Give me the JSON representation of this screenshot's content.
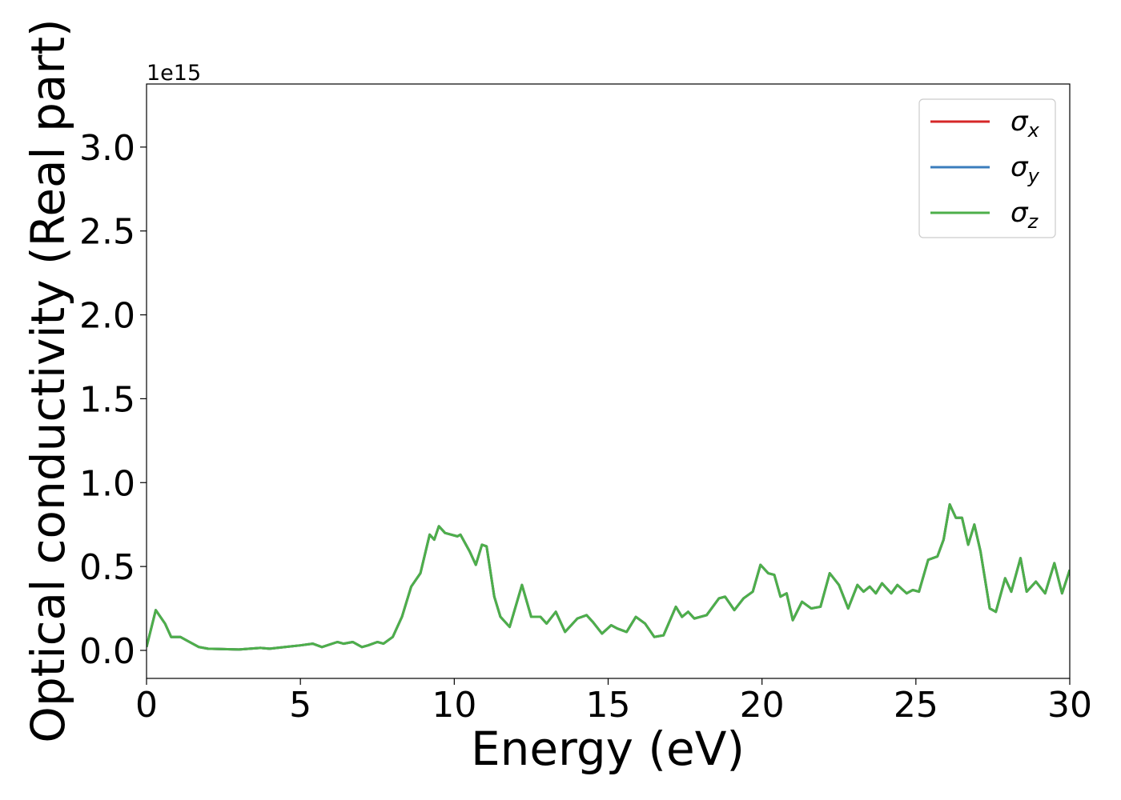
{
  "chart_data": {
    "type": "line",
    "xlabel": "Energy (eV)",
    "ylabel": "Optical conductivity (Real part)",
    "y_offset_text": "1e15",
    "xlim": [
      0,
      30
    ],
    "xticks": [
      0,
      5,
      10,
      15,
      20,
      25,
      30
    ],
    "ylim": [
      -0.167,
      3.376
    ],
    "yticks": [
      {
        "value": 0,
        "label": "0.0"
      },
      {
        "value": 0.5,
        "label": "0.5"
      },
      {
        "value": 1,
        "label": "1.0"
      },
      {
        "value": 1.5,
        "label": "1.5"
      },
      {
        "value": 2,
        "label": "2.0"
      },
      {
        "value": 2.5,
        "label": "2.5"
      },
      {
        "value": 3,
        "label": "3.0"
      }
    ],
    "legend": "upper right",
    "grid": false,
    "x": [
      0,
      0.3,
      0.6,
      0.8,
      1.1,
      1.3,
      1.7,
      2.0,
      3.0,
      3.7,
      4.0,
      4.5,
      5.0,
      5.4,
      5.7,
      6.2,
      6.4,
      6.7,
      7.0,
      7.2,
      7.5,
      7.7,
      8.0,
      8.3,
      8.6,
      8.9,
      9.2,
      9.35,
      9.5,
      9.7,
      9.9,
      10.1,
      10.2,
      10.5,
      10.7,
      10.9,
      11.05,
      11.3,
      11.5,
      11.8,
      12.2,
      12.5,
      12.8,
      13.0,
      13.3,
      13.6,
      14.0,
      14.3,
      14.5,
      14.8,
      15.1,
      15.3,
      15.6,
      15.9,
      16.2,
      16.5,
      16.8,
      17.2,
      17.4,
      17.6,
      17.8,
      18.2,
      18.6,
      18.8,
      19.1,
      19.4,
      19.7,
      19.95,
      20.2,
      20.4,
      20.6,
      20.8,
      21.0,
      21.3,
      21.6,
      21.9,
      22.2,
      22.5,
      22.8,
      23.1,
      23.3,
      23.5,
      23.7,
      23.9,
      24.2,
      24.4,
      24.7,
      24.9,
      25.1,
      25.4,
      25.7,
      25.9,
      26.1,
      26.3,
      26.5,
      26.7,
      26.9,
      27.1,
      27.4,
      27.6,
      27.9,
      28.1,
      28.4,
      28.6,
      28.9,
      29.2,
      29.5,
      29.75,
      30
    ],
    "series": [
      {
        "name": "σx",
        "color": "#d62728",
        "values": [
          0.02,
          0.24,
          0.16,
          0.08,
          0.08,
          0.06,
          0.02,
          0.01,
          0.005,
          0.015,
          0.01,
          0.02,
          0.03,
          0.04,
          0.02,
          0.05,
          0.04,
          0.05,
          0.02,
          0.03,
          0.05,
          0.04,
          0.08,
          0.2,
          0.38,
          0.46,
          0.69,
          0.66,
          0.74,
          0.7,
          0.69,
          0.68,
          0.69,
          0.59,
          0.51,
          0.63,
          0.62,
          0.32,
          0.2,
          0.14,
          0.39,
          0.2,
          0.2,
          0.16,
          0.23,
          0.11,
          0.19,
          0.21,
          0.17,
          0.1,
          0.15,
          0.13,
          0.11,
          0.2,
          0.16,
          0.08,
          0.09,
          0.26,
          0.2,
          0.23,
          0.19,
          0.21,
          0.31,
          0.32,
          0.24,
          0.31,
          0.35,
          0.51,
          0.46,
          0.45,
          0.32,
          0.34,
          0.18,
          0.29,
          0.25,
          0.26,
          0.46,
          0.39,
          0.25,
          0.39,
          0.35,
          0.38,
          0.34,
          0.4,
          0.34,
          0.39,
          0.34,
          0.36,
          0.35,
          0.54,
          0.56,
          0.66,
          0.87,
          0.79,
          0.79,
          0.63,
          0.75,
          0.59,
          0.25,
          0.23,
          0.43,
          0.35,
          0.55,
          0.35,
          0.41,
          0.34,
          0.52,
          0.34,
          0.48
        ]
      },
      {
        "name": "σy",
        "color": "#3b7dbd",
        "values": [
          0.02,
          0.24,
          0.16,
          0.08,
          0.08,
          0.06,
          0.02,
          0.01,
          0.005,
          0.015,
          0.01,
          0.02,
          0.03,
          0.04,
          0.02,
          0.05,
          0.04,
          0.05,
          0.02,
          0.03,
          0.05,
          0.04,
          0.08,
          0.2,
          0.38,
          0.46,
          0.69,
          0.66,
          0.74,
          0.7,
          0.69,
          0.68,
          0.69,
          0.59,
          0.51,
          0.63,
          0.62,
          0.32,
          0.2,
          0.14,
          0.39,
          0.2,
          0.2,
          0.16,
          0.23,
          0.11,
          0.19,
          0.21,
          0.17,
          0.1,
          0.15,
          0.13,
          0.11,
          0.2,
          0.16,
          0.08,
          0.09,
          0.26,
          0.2,
          0.23,
          0.19,
          0.21,
          0.31,
          0.32,
          0.24,
          0.31,
          0.35,
          0.51,
          0.46,
          0.45,
          0.32,
          0.34,
          0.18,
          0.29,
          0.25,
          0.26,
          0.46,
          0.39,
          0.25,
          0.39,
          0.35,
          0.38,
          0.34,
          0.4,
          0.34,
          0.39,
          0.34,
          0.36,
          0.35,
          0.54,
          0.56,
          0.66,
          0.87,
          0.79,
          0.79,
          0.63,
          0.75,
          0.59,
          0.25,
          0.23,
          0.43,
          0.35,
          0.55,
          0.35,
          0.41,
          0.34,
          0.52,
          0.34,
          0.48
        ]
      },
      {
        "name": "σz",
        "color": "#4daf4a",
        "values": [
          0.02,
          0.24,
          0.16,
          0.08,
          0.08,
          0.06,
          0.02,
          0.01,
          0.005,
          0.015,
          0.01,
          0.02,
          0.03,
          0.04,
          0.02,
          0.05,
          0.04,
          0.05,
          0.02,
          0.03,
          0.05,
          0.04,
          0.08,
          0.2,
          0.38,
          0.46,
          0.69,
          0.66,
          0.74,
          0.7,
          0.69,
          0.68,
          0.69,
          0.59,
          0.51,
          0.63,
          0.62,
          0.32,
          0.2,
          0.14,
          0.39,
          0.2,
          0.2,
          0.16,
          0.23,
          0.11,
          0.19,
          0.21,
          0.17,
          0.1,
          0.15,
          0.13,
          0.11,
          0.2,
          0.16,
          0.08,
          0.09,
          0.26,
          0.2,
          0.23,
          0.19,
          0.21,
          0.31,
          0.32,
          0.24,
          0.31,
          0.35,
          0.51,
          0.46,
          0.45,
          0.32,
          0.34,
          0.18,
          0.29,
          0.25,
          0.26,
          0.46,
          0.39,
          0.25,
          0.39,
          0.35,
          0.38,
          0.34,
          0.4,
          0.34,
          0.39,
          0.34,
          0.36,
          0.35,
          0.54,
          0.56,
          0.66,
          0.87,
          0.79,
          0.79,
          0.63,
          0.75,
          0.59,
          0.25,
          0.23,
          0.43,
          0.35,
          0.55,
          0.35,
          0.41,
          0.34,
          0.52,
          0.34,
          0.48
        ]
      }
    ]
  }
}
